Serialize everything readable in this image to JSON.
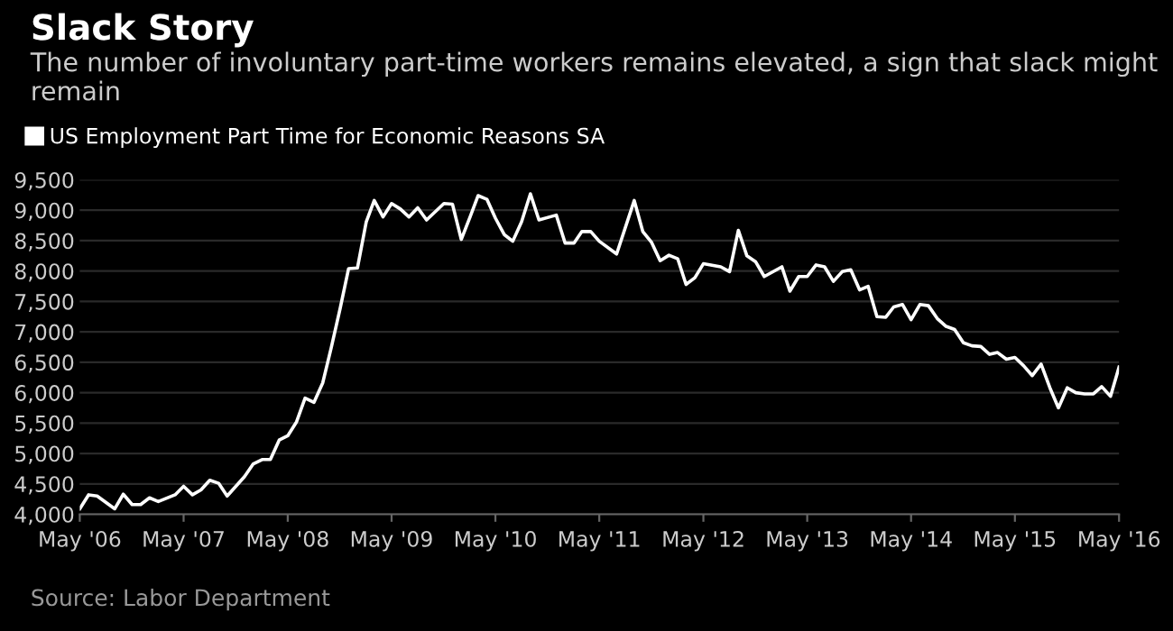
{
  "chart_data": {
    "type": "line",
    "title": "Slack Story",
    "subtitle": "The number of involuntary part-time workers remains elevated, a sign that slack might remain",
    "annotations": [
      "Source: Labor Department"
    ],
    "series": [
      {
        "name": "US Employment Part Time for Economic Reasons SA",
        "color": "#ffffff",
        "x": [
          "2006-05",
          "2006-06",
          "2006-07",
          "2006-09",
          "2006-10",
          "2006-11",
          "2006-12",
          "2007-01",
          "2007-02",
          "2007-04",
          "2007-05",
          "2007-06",
          "2007-07",
          "2007-08",
          "2007-09",
          "2007-10",
          "2007-12",
          "2008-01",
          "2008-02",
          "2008-03",
          "2008-04",
          "2008-05",
          "2008-06",
          "2008-07",
          "2008-08",
          "2008-09",
          "2008-10",
          "2008-11",
          "2008-12",
          "2009-01",
          "2009-02",
          "2009-03",
          "2009-04",
          "2009-05",
          "2009-06",
          "2009-07",
          "2009-08",
          "2009-09",
          "2009-11",
          "2009-12",
          "2010-01",
          "2010-02",
          "2010-03",
          "2010-04",
          "2010-05",
          "2010-06",
          "2010-07",
          "2010-08",
          "2010-09",
          "2010-10",
          "2010-12",
          "2011-01",
          "2011-02",
          "2011-03",
          "2011-04",
          "2011-05",
          "2011-07",
          "2011-09",
          "2011-10",
          "2011-11",
          "2011-12",
          "2012-01",
          "2012-02",
          "2012-03",
          "2012-04",
          "2012-05",
          "2012-07",
          "2012-08",
          "2012-09",
          "2012-10",
          "2012-11",
          "2012-12",
          "2013-02",
          "2013-03",
          "2013-04",
          "2013-05",
          "2013-06",
          "2013-07",
          "2013-08",
          "2013-09",
          "2013-10",
          "2013-11",
          "2013-12",
          "2014-01",
          "2014-02",
          "2014-03",
          "2014-04",
          "2014-05",
          "2014-06",
          "2014-07",
          "2014-08",
          "2014-09",
          "2014-10",
          "2014-11",
          "2014-12",
          "2015-01",
          "2015-02",
          "2015-03",
          "2015-04",
          "2015-05",
          "2015-06",
          "2015-07",
          "2015-08",
          "2015-09",
          "2015-10",
          "2015-11",
          "2015-12",
          "2016-01",
          "2016-02",
          "2016-03",
          "2016-04",
          "2016-05"
        ],
        "values": [
          4090,
          4320,
          4300,
          4090,
          4330,
          4160,
          4160,
          4270,
          4210,
          4320,
          4460,
          4320,
          4400,
          4560,
          4510,
          4300,
          4620,
          4830,
          4900,
          4900,
          5220,
          5290,
          5520,
          5910,
          5840,
          6160,
          6740,
          7380,
          8040,
          8050,
          8810,
          9160,
          8890,
          9110,
          9020,
          8890,
          9040,
          8840,
          9110,
          9100,
          8520,
          8890,
          9240,
          9180,
          8870,
          8600,
          8490,
          8810,
          9270,
          8840,
          8920,
          8460,
          8460,
          8650,
          8650,
          8490,
          8280,
          9160,
          8650,
          8470,
          8170,
          8260,
          8200,
          7780,
          7890,
          8120,
          8070,
          7990,
          8670,
          8250,
          8150,
          7910,
          8070,
          7670,
          7910,
          7910,
          8100,
          8070,
          7830,
          7990,
          8020,
          7690,
          7750,
          7250,
          7240,
          7410,
          7450,
          7200,
          7450,
          7430,
          7220,
          7090,
          7040,
          6820,
          6770,
          6760,
          6630,
          6660,
          6550,
          6580,
          6440,
          6280,
          6470,
          6080,
          5750,
          6080,
          6000,
          5980,
          5980,
          6100,
          5940,
          6420
        ]
      }
    ],
    "xlim": [
      "2006-05",
      "2016-05"
    ],
    "xticks": [
      {
        "value": "2006-05",
        "label": "May '06"
      },
      {
        "value": "2007-05",
        "label": "May '07"
      },
      {
        "value": "2008-05",
        "label": "May '08"
      },
      {
        "value": "2009-05",
        "label": "May '09"
      },
      {
        "value": "2010-05",
        "label": "May '10"
      },
      {
        "value": "2011-05",
        "label": "May '11"
      },
      {
        "value": "2012-05",
        "label": "May '12"
      },
      {
        "value": "2013-05",
        "label": "May '13"
      },
      {
        "value": "2014-05",
        "label": "May '14"
      },
      {
        "value": "2015-05",
        "label": "May '15"
      },
      {
        "value": "2016-05",
        "label": "May '16"
      }
    ],
    "ylim": [
      4000,
      9500
    ],
    "yticks": [
      {
        "value": 4000,
        "label": "4,000"
      },
      {
        "value": 4500,
        "label": "4,500"
      },
      {
        "value": 5000,
        "label": "5,000"
      },
      {
        "value": 5500,
        "label": "5,500"
      },
      {
        "value": 6000,
        "label": "6,000"
      },
      {
        "value": 6500,
        "label": "6,500"
      },
      {
        "value": 7000,
        "label": "7,000"
      },
      {
        "value": 7500,
        "label": "7,500"
      },
      {
        "value": 8000,
        "label": "8,000"
      },
      {
        "value": 8500,
        "label": "8,500"
      },
      {
        "value": 9000,
        "label": "9,000"
      },
      {
        "value": 9500,
        "label": "9,500"
      }
    ],
    "grid": "y",
    "legend": "top left",
    "marker": "none",
    "line_style": "solid"
  }
}
